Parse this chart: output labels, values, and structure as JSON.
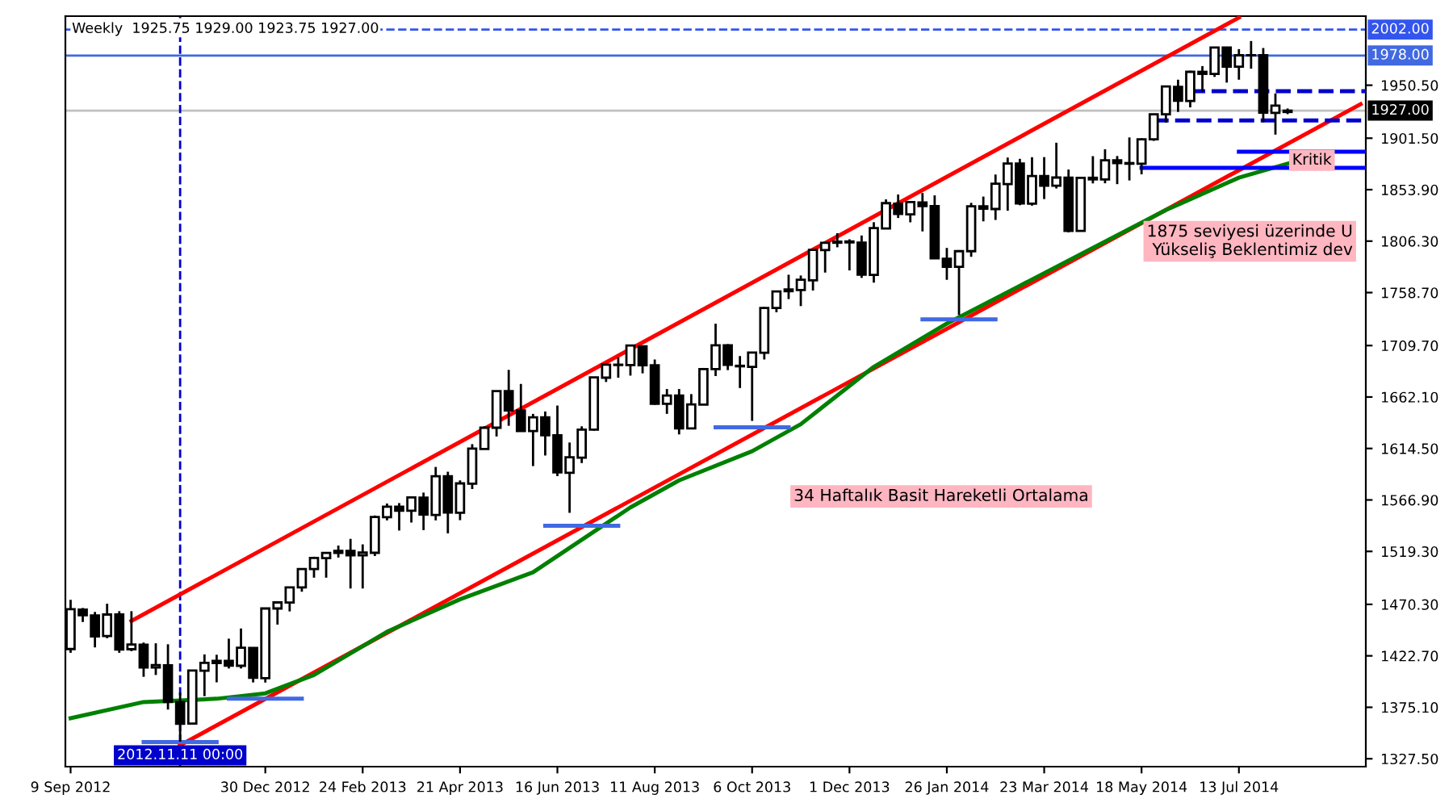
{
  "chart_data": {
    "type": "candlestick",
    "title": "Weekly  1925.75 1929.00 1923.75 1927.00",
    "x": [
      "2012-09-09",
      "2012-09-16",
      "2012-09-23",
      "2012-09-30",
      "2012-10-07",
      "2012-10-14",
      "2012-10-21",
      "2012-10-28",
      "2012-11-04",
      "2012-11-11",
      "2012-11-18",
      "2012-11-25",
      "2012-12-02",
      "2012-12-09",
      "2012-12-16",
      "2012-12-23",
      "2012-12-30",
      "2013-01-06",
      "2013-01-13",
      "2013-01-20",
      "2013-01-27",
      "2013-02-03",
      "2013-02-10",
      "2013-02-17",
      "2013-02-24",
      "2013-03-03",
      "2013-03-10",
      "2013-03-17",
      "2013-03-24",
      "2013-03-31",
      "2013-04-07",
      "2013-04-14",
      "2013-04-21",
      "2013-04-28",
      "2013-05-05",
      "2013-05-12",
      "2013-05-19",
      "2013-05-26",
      "2013-06-02",
      "2013-06-09",
      "2013-06-16",
      "2013-06-23",
      "2013-06-30",
      "2013-07-07",
      "2013-07-14",
      "2013-07-21",
      "2013-07-28",
      "2013-08-04",
      "2013-08-11",
      "2013-08-18",
      "2013-08-25",
      "2013-09-01",
      "2013-09-08",
      "2013-09-15",
      "2013-09-22",
      "2013-09-29",
      "2013-10-06",
      "2013-10-13",
      "2013-10-20",
      "2013-10-27",
      "2013-11-03",
      "2013-11-10",
      "2013-11-17",
      "2013-11-24",
      "2013-12-01",
      "2013-12-08",
      "2013-12-15",
      "2013-12-22",
      "2013-12-29",
      "2014-01-05",
      "2014-01-12",
      "2014-01-19",
      "2014-01-26",
      "2014-02-02",
      "2014-02-09",
      "2014-02-16",
      "2014-02-23",
      "2014-03-02",
      "2014-03-09",
      "2014-03-16",
      "2014-03-23",
      "2014-03-30",
      "2014-04-06",
      "2014-04-13",
      "2014-04-20",
      "2014-04-27",
      "2014-05-04",
      "2014-05-11",
      "2014-05-18",
      "2014-05-25",
      "2014-06-01",
      "2014-06-08",
      "2014-06-15",
      "2014-06-22",
      "2014-06-29",
      "2014-07-06",
      "2014-07-13",
      "2014-07-20",
      "2014-07-27",
      "2014-08-03",
      "2014-08-10"
    ],
    "ohlc": [
      [
        1429,
        1474.5,
        1425.5,
        1465.8
      ],
      [
        1465.4,
        1467,
        1454,
        1460.2
      ],
      [
        1460,
        1463.3,
        1430.5,
        1440.7
      ],
      [
        1441,
        1470.9,
        1439,
        1460.9
      ],
      [
        1461,
        1464,
        1425.5,
        1428.6
      ],
      [
        1428.8,
        1464,
        1427,
        1433.2
      ],
      [
        1433,
        1435,
        1403.3,
        1411.9
      ],
      [
        1411.9,
        1434.3,
        1405,
        1414.2
      ],
      [
        1414,
        1433.4,
        1373,
        1380
      ],
      [
        1380,
        1388.8,
        1343.3,
        1359.9
      ],
      [
        1360,
        1409.2,
        1359.9,
        1409.2
      ],
      [
        1409,
        1424,
        1385.4,
        1416.2
      ],
      [
        1416,
        1423.7,
        1398.2,
        1418.1
      ],
      [
        1418,
        1438.6,
        1411,
        1413.6
      ],
      [
        1413.5,
        1448,
        1411,
        1430.2
      ],
      [
        1430,
        1430.6,
        1398.1,
        1402.4
      ],
      [
        1402,
        1466.5,
        1398,
        1466.5
      ],
      [
        1466.5,
        1472.8,
        1451.6,
        1472.1
      ],
      [
        1472,
        1486,
        1463.8,
        1486
      ],
      [
        1486,
        1503.3,
        1482,
        1503
      ],
      [
        1503,
        1514.4,
        1495,
        1513.2
      ],
      [
        1513,
        1518.3,
        1495,
        1517.9
      ],
      [
        1517.9,
        1524.7,
        1513.6,
        1519.8
      ],
      [
        1519.8,
        1530.9,
        1485,
        1515.6
      ],
      [
        1515.6,
        1525.8,
        1485,
        1518.2
      ],
      [
        1518,
        1552.5,
        1515,
        1551.2
      ],
      [
        1551,
        1563.6,
        1548,
        1560.7
      ],
      [
        1560.7,
        1564,
        1538.6,
        1556.9
      ],
      [
        1556.9,
        1570.3,
        1546,
        1569.2
      ],
      [
        1569,
        1573.7,
        1539,
        1553.3
      ],
      [
        1553,
        1597.4,
        1548,
        1588.9
      ],
      [
        1588.9,
        1593,
        1536,
        1555.3
      ],
      [
        1555,
        1585,
        1548.2,
        1582.2
      ],
      [
        1582,
        1618.5,
        1577,
        1614.4
      ],
      [
        1614,
        1635,
        1614,
        1633.7
      ],
      [
        1633.7,
        1667.5,
        1625.6,
        1667.5
      ],
      [
        1667.5,
        1687.2,
        1635.5,
        1649.6
      ],
      [
        1649.6,
        1674.2,
        1630.7,
        1630.7
      ],
      [
        1630.6,
        1646.5,
        1598.2,
        1643.4
      ],
      [
        1643.4,
        1648.7,
        1608,
        1626.7
      ],
      [
        1626.7,
        1654.2,
        1588.9,
        1592.4
      ],
      [
        1592,
        1620,
        1555,
        1606.3
      ],
      [
        1606,
        1635,
        1601,
        1631.9
      ],
      [
        1632,
        1680.2,
        1631,
        1680.2
      ],
      [
        1680,
        1693,
        1676,
        1692.1
      ],
      [
        1692,
        1698.8,
        1680,
        1691.7
      ],
      [
        1691.7,
        1709.7,
        1681.9,
        1709.7
      ],
      [
        1709,
        1709.2,
        1684,
        1691.4
      ],
      [
        1691.4,
        1696.8,
        1654.9,
        1655.8
      ],
      [
        1655.8,
        1669.5,
        1646.5,
        1663.5
      ],
      [
        1663.5,
        1669.5,
        1627.5,
        1633
      ],
      [
        1633,
        1664.8,
        1633,
        1655.2
      ],
      [
        1655,
        1689,
        1655,
        1688
      ],
      [
        1688,
        1729.9,
        1681.5,
        1709.9
      ],
      [
        1710,
        1711,
        1687,
        1691.8
      ],
      [
        1691,
        1700,
        1670.4,
        1690.5
      ],
      [
        1690,
        1703.4,
        1640,
        1703.2
      ],
      [
        1703,
        1745.3,
        1696.8,
        1744.5
      ],
      [
        1744.5,
        1759.8,
        1740.5,
        1759.8
      ],
      [
        1760,
        1775.2,
        1752.7,
        1761.6
      ],
      [
        1761,
        1774.5,
        1746.2,
        1770.6
      ],
      [
        1770,
        1798.2,
        1760.6,
        1798.2
      ],
      [
        1798,
        1804.8,
        1777.2,
        1804.8
      ],
      [
        1804.8,
        1813.6,
        1800.6,
        1805.8
      ],
      [
        1806,
        1808,
        1779.2,
        1805.1
      ],
      [
        1805,
        1811.5,
        1772.3,
        1775.3
      ],
      [
        1775,
        1823.8,
        1767.9,
        1818.3
      ],
      [
        1818,
        1844.9,
        1818,
        1841.4
      ],
      [
        1841,
        1849.4,
        1827.7,
        1831.4
      ],
      [
        1831,
        1843.2,
        1823.7,
        1842.4
      ],
      [
        1842,
        1850.8,
        1815.3,
        1838.7
      ],
      [
        1838.7,
        1848.6,
        1790.3,
        1790.3
      ],
      [
        1790,
        1800,
        1770.5,
        1782.6
      ],
      [
        1782.6,
        1798,
        1737.9,
        1797
      ],
      [
        1797,
        1841.7,
        1791.8,
        1838.6
      ],
      [
        1838.6,
        1847.5,
        1824.6,
        1836.3
      ],
      [
        1836,
        1867.9,
        1825.9,
        1859.5
      ],
      [
        1859,
        1883.6,
        1834.4,
        1878
      ],
      [
        1878,
        1882.4,
        1839.5,
        1841.1
      ],
      [
        1841,
        1883.9,
        1839.1,
        1866.5
      ],
      [
        1866.5,
        1884,
        1845.2,
        1857.6
      ],
      [
        1857.6,
        1897.3,
        1855,
        1865.1
      ],
      [
        1865,
        1872.5,
        1814.4,
        1815.7
      ],
      [
        1815.7,
        1864.9,
        1815.7,
        1864.9
      ],
      [
        1864.9,
        1884.9,
        1859.7,
        1863.4
      ],
      [
        1863.4,
        1891.3,
        1859.8,
        1881.1
      ],
      [
        1881,
        1885,
        1859,
        1878.5
      ],
      [
        1878.5,
        1902.2,
        1862.4,
        1877.9
      ],
      [
        1877.9,
        1901.3,
        1868.1,
        1900.5
      ],
      [
        1900.5,
        1924,
        1899,
        1923.6
      ],
      [
        1923.6,
        1949.4,
        1915.9,
        1949.4
      ],
      [
        1949,
        1955.6,
        1925.8,
        1936.2
      ],
      [
        1936,
        1963.9,
        1930,
        1962.9
      ],
      [
        1962.9,
        1968.2,
        1944.7,
        1961
      ],
      [
        1961,
        1985.6,
        1958.2,
        1985.4
      ],
      [
        1985.4,
        1985.6,
        1952.9,
        1967.6
      ],
      [
        1967.6,
        1983.9,
        1955.6,
        1978.2
      ],
      [
        1978.2,
        1991.4,
        1965.8,
        1978.3
      ],
      [
        1978.3,
        1984.9,
        1916.3,
        1925.2
      ],
      [
        1925,
        1942.9,
        1904.8,
        1931.6
      ],
      [
        1925.75,
        1929,
        1923.75,
        1927
      ]
    ],
    "series": [
      {
        "type": "line",
        "color": "#ff0000",
        "x": [
          "2012-10-14",
          "2014-07-13"
        ],
        "values": [
          1455,
          2013
        ]
      },
      {
        "type": "line",
        "color": "#ff0000",
        "x": [
          "2012-11-11",
          "2014-09-21"
        ],
        "values": [
          1340,
          1933
        ]
      },
      {
        "type": "line",
        "color": "#008000",
        "x": [
          "2012-09-09",
          "2012-10-21",
          "2012-12-02",
          "2012-12-30",
          "2013-01-27",
          "2013-03-10",
          "2013-04-21",
          "2013-06-02",
          "2013-06-30",
          "2013-07-28",
          "2013-08-25",
          "2013-10-06",
          "2013-11-03",
          "2013-12-15",
          "2014-01-26",
          "2014-03-09",
          "2014-04-20",
          "2014-06-01",
          "2014-07-13",
          "2014-08-10"
        ],
        "values": [
          1365,
          1380,
          1383,
          1388,
          1405,
          1445,
          1475,
          1500,
          1530,
          1560,
          1585,
          1612,
          1637,
          1690,
          1730,
          1765,
          1800,
          1835,
          1865,
          1878
        ]
      },
      {
        "type": "line",
        "color": "#4169e1",
        "x": [
          "2012-10-21",
          "2012-12-02"
        ],
        "values": [
          1343,
          1343
        ]
      },
      {
        "type": "line",
        "color": "#4169e1",
        "x": [
          "2012-12-09",
          "2013-01-20"
        ],
        "values": [
          1383,
          1383
        ]
      },
      {
        "type": "line",
        "color": "#4169e1",
        "x": [
          "2013-06-09",
          "2013-07-21"
        ],
        "values": [
          1543,
          1543
        ]
      },
      {
        "type": "line",
        "color": "#4169e1",
        "x": [
          "2013-09-15",
          "2013-10-27"
        ],
        "values": [
          1634,
          1634
        ]
      },
      {
        "type": "line",
        "color": "#4169e1",
        "x": [
          "2014-01-12",
          "2014-02-23"
        ],
        "values": [
          1734,
          1734
        ]
      },
      {
        "type": "line",
        "color": "#0000ff",
        "x": [
          "2014-05-18",
          "2014-09-24"
        ],
        "values": [
          1874,
          1874
        ]
      },
      {
        "type": "line",
        "color": "#0000ff",
        "x": [
          "2014-07-13",
          "2014-09-24"
        ],
        "values": [
          1889,
          1889
        ]
      },
      {
        "type": "line",
        "color": "#0000cc",
        "line_style": "dashed",
        "x": [
          "2014-06-15",
          "2014-09-24"
        ],
        "values": [
          1945,
          1945
        ]
      },
      {
        "type": "line",
        "color": "#0000cc",
        "line_style": "dashed",
        "x": [
          "2014-05-25",
          "2014-09-24"
        ],
        "values": [
          1918,
          1918
        ]
      }
    ],
    "ref_lines": [
      {
        "axis": "y",
        "value": 2002,
        "label": "2002.00",
        "color": "#3355ee",
        "line_style": "dashed"
      },
      {
        "axis": "y",
        "value": 1978,
        "label": "1978.00",
        "color": "#4169e1",
        "line_style": "solid"
      },
      {
        "axis": "y",
        "value": 1927,
        "label": "1927.00",
        "color": "#c0c0c0",
        "line_style": "solid"
      },
      {
        "axis": "x",
        "value": "2012-11-11",
        "label": "2012.11.11 00:00",
        "color": "#0000cc",
        "line_style": "dashed"
      }
    ],
    "annotations": [
      "34 Haftalık Basit Hareketli Ortalama",
      "1875 seviyesi üzerinde U\nYükseliş Beklentimiz dev",
      {
        "text": "Kritik",
        "x": "2014-08-24",
        "y": 1881
      }
    ],
    "xlim": [
      "2012-09-06",
      "2014-09-24"
    ],
    "xticks": [
      {
        "value": "2012-09-09",
        "label": "9 Sep 2012"
      },
      {
        "value": "2012-12-30",
        "label": "30 Dec 2012"
      },
      {
        "value": "2013-02-24",
        "label": "24 Feb 2013"
      },
      {
        "value": "2013-04-21",
        "label": "21 Apr 2013"
      },
      {
        "value": "2013-06-16",
        "label": "16 Jun 2013"
      },
      {
        "value": "2013-08-11",
        "label": "11 Aug 2013"
      },
      {
        "value": "2013-10-06",
        "label": "6 Oct 2013"
      },
      {
        "value": "2013-12-01",
        "label": "1 Dec 2013"
      },
      {
        "value": "2014-01-26",
        "label": "26 Jan 2014"
      },
      {
        "value": "2014-03-23",
        "label": "23 Mar 2014"
      },
      {
        "value": "2014-05-18",
        "label": "18 May 2014"
      },
      {
        "value": "2014-07-13",
        "label": "13 Jul 2014"
      }
    ],
    "ylim": [
      1320.2,
      2014.4
    ],
    "yticks": [
      {
        "value": 1327.5,
        "label": "1327.50"
      },
      {
        "value": 1375.1,
        "label": "1375.10"
      },
      {
        "value": 1422.7,
        "label": "1422.70"
      },
      {
        "value": 1470.3,
        "label": "1470.30"
      },
      {
        "value": 1519.3,
        "label": "1519.30"
      },
      {
        "value": 1566.9,
        "label": "1566.90"
      },
      {
        "value": 1614.5,
        "label": "1614.50"
      },
      {
        "value": 1662.1,
        "label": "1662.10"
      },
      {
        "value": 1709.7,
        "label": "1709.70"
      },
      {
        "value": 1758.7,
        "label": "1758.70"
      },
      {
        "value": 1806.3,
        "label": "1806.30"
      },
      {
        "value": 1853.9,
        "label": "1853.90"
      },
      {
        "value": 1901.5,
        "label": "1901.50"
      },
      {
        "value": 1950.5,
        "label": "1950.50"
      }
    ]
  }
}
